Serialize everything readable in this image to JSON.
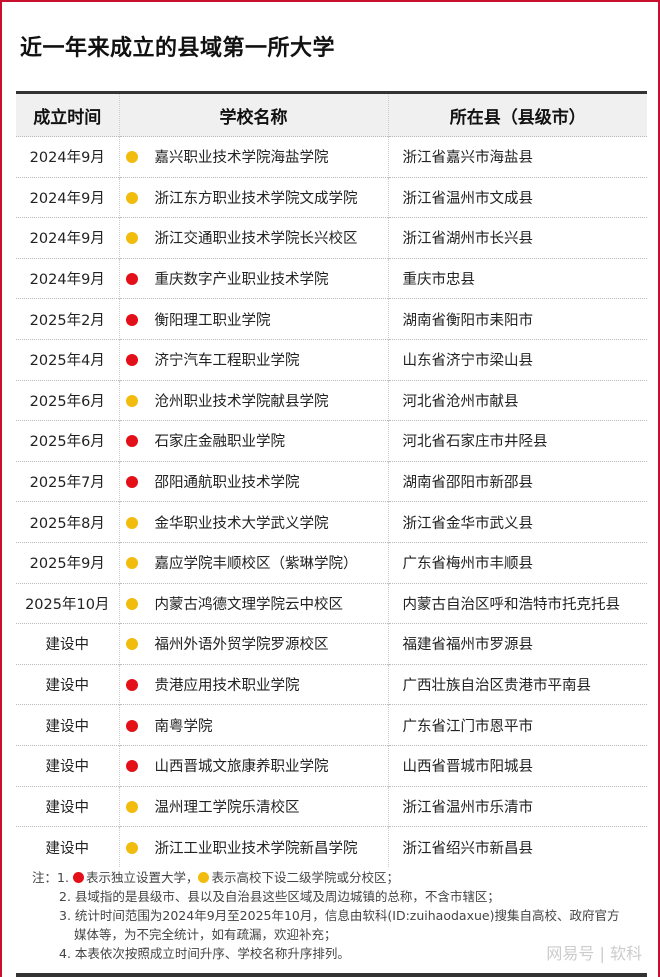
{
  "title": "近一年来成立的县域第一所大学",
  "colors": {
    "independent": "#e3101a",
    "branch": "#f2bc0f",
    "border": "#c8102e"
  },
  "table": {
    "headers": [
      "成立时间",
      "学校名称",
      "所在县（县级市）"
    ],
    "rows": [
      {
        "date": "2024年9月",
        "type": "branch",
        "name": "嘉兴职业技术学院海盐学院",
        "location": "浙江省嘉兴市海盐县"
      },
      {
        "date": "2024年9月",
        "type": "branch",
        "name": "浙江东方职业技术学院文成学院",
        "location": "浙江省温州市文成县"
      },
      {
        "date": "2024年9月",
        "type": "branch",
        "name": "浙江交通职业技术学院长兴校区",
        "location": "浙江省湖州市长兴县"
      },
      {
        "date": "2024年9月",
        "type": "independent",
        "name": "重庆数字产业职业技术学院",
        "location": "重庆市忠县"
      },
      {
        "date": "2025年2月",
        "type": "independent",
        "name": "衡阳理工职业学院",
        "location": "湖南省衡阳市耒阳市"
      },
      {
        "date": "2025年4月",
        "type": "independent",
        "name": "济宁汽车工程职业学院",
        "location": "山东省济宁市梁山县"
      },
      {
        "date": "2025年6月",
        "type": "branch",
        "name": "沧州职业技术学院献县学院",
        "location": "河北省沧州市献县"
      },
      {
        "date": "2025年6月",
        "type": "independent",
        "name": "石家庄金融职业学院",
        "location": "河北省石家庄市井陉县"
      },
      {
        "date": "2025年7月",
        "type": "independent",
        "name": "邵阳通航职业技术学院",
        "location": "湖南省邵阳市新邵县"
      },
      {
        "date": "2025年8月",
        "type": "branch",
        "name": "金华职业技术大学武义学院",
        "location": "浙江省金华市武义县"
      },
      {
        "date": "2025年9月",
        "type": "branch",
        "name": "嘉应学院丰顺校区（紫琳学院）",
        "location": "广东省梅州市丰顺县"
      },
      {
        "date": "2025年10月",
        "type": "branch",
        "name": "内蒙古鸿德文理学院云中校区",
        "location": "内蒙古自治区呼和浩特市托克托县"
      },
      {
        "date": "建设中",
        "type": "branch",
        "name": "福州外语外贸学院罗源校区",
        "location": "福建省福州市罗源县"
      },
      {
        "date": "建设中",
        "type": "independent",
        "name": "贵港应用技术职业学院",
        "location": "广西壮族自治区贵港市平南县"
      },
      {
        "date": "建设中",
        "type": "independent",
        "name": "南粤学院",
        "location": "广东省江门市恩平市"
      },
      {
        "date": "建设中",
        "type": "independent",
        "name": "山西晋城文旅康养职业学院",
        "location": "山西省晋城市阳城县"
      },
      {
        "date": "建设中",
        "type": "branch",
        "name": "温州理工学院乐清校区",
        "location": "浙江省温州市乐清市"
      },
      {
        "date": "建设中",
        "type": "branch",
        "name": "浙江工业职业技术学院新昌学院",
        "location": "浙江省绍兴市新昌县"
      }
    ]
  },
  "notes": {
    "prefix": "注：",
    "n1_num": "1.",
    "n1_a": "表示独立设置大学，",
    "n1_b": "表示高校下设二级学院或分校区；",
    "n2": "2. 县域指的是县级市、县以及自治县这些区域及周边城镇的总称，不含市辖区；",
    "n3a": "3. 统计时间范围为2024年9月至2025年10月，信息由软科(ID:zuihaodaxue)搜集自高校、政府官方",
    "n3b": "媒体等，为不完全统计，如有疏漏，欢迎补充；",
    "n4": "4. 本表依次按照成立时间升序、学校名称升序排列。"
  },
  "watermark": "网易号 | 软科"
}
